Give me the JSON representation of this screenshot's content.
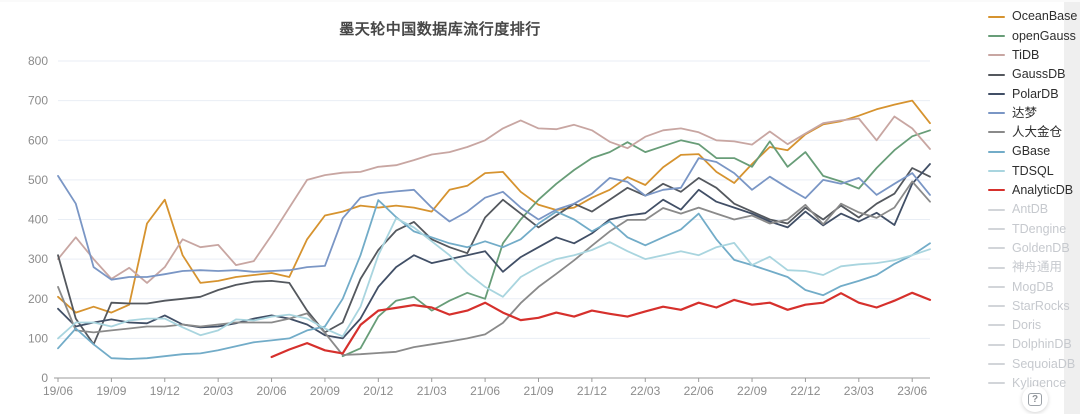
{
  "title": "墨天轮中国数据库流行度排行",
  "help_icon": "?",
  "legend": {
    "position": "right",
    "items": [
      {
        "label": "OceanBase",
        "color": "#D6932F",
        "active": true
      },
      {
        "label": "openGauss",
        "color": "#689D78",
        "active": true
      },
      {
        "label": "TiDB",
        "color": "#C8A6A2",
        "active": true
      },
      {
        "label": "GaussDB",
        "color": "#54585E",
        "active": true
      },
      {
        "label": "PolarDB",
        "color": "#414F66",
        "active": true
      },
      {
        "label": "达梦",
        "color": "#7A96C5",
        "active": true
      },
      {
        "label": "人大金仓",
        "color": "#8A8A8A",
        "active": true
      },
      {
        "label": "GBase",
        "color": "#72ACC8",
        "active": true
      },
      {
        "label": "TDSQL",
        "color": "#A9D5DF",
        "active": true
      },
      {
        "label": "AnalyticDB",
        "color": "#D6302C",
        "active": true
      },
      {
        "label": "AntDB",
        "color": "#D2D5D9",
        "active": false
      },
      {
        "label": "TDengine",
        "color": "#D2D5D9",
        "active": false
      },
      {
        "label": "GoldenDB",
        "color": "#D2D5D9",
        "active": false
      },
      {
        "label": "神舟通用",
        "color": "#D2D5D9",
        "active": false
      },
      {
        "label": "MogDB",
        "color": "#D2D5D9",
        "active": false
      },
      {
        "label": "StarRocks",
        "color": "#D2D5D9",
        "active": false
      },
      {
        "label": "Doris",
        "color": "#D2D5D9",
        "active": false
      },
      {
        "label": "DolphinDB",
        "color": "#D2D5D9",
        "active": false
      },
      {
        "label": "SequoiaDB",
        "color": "#D2D5D9",
        "active": false
      },
      {
        "label": "Kyligence",
        "color": "#D2D5D9",
        "active": false
      }
    ]
  },
  "chart_data": {
    "type": "line",
    "title": "墨天轮中国数据库流行度排行",
    "xlabel": "",
    "ylabel": "",
    "ylim": [
      0,
      800
    ],
    "y_ticks": [
      0,
      100,
      200,
      300,
      400,
      500,
      600,
      700,
      800
    ],
    "grid": true,
    "legend_position": "right",
    "points_count": 50,
    "x_start": "2019/06",
    "x_step_months": 1,
    "x_tick_every": 3,
    "x_tick_labels": [
      "19/06",
      "19/09",
      "19/12",
      "20/03",
      "20/06",
      "20/09",
      "20/12",
      "21/03",
      "21/06",
      "21/09",
      "21/12",
      "22/03",
      "22/06",
      "22/09",
      "22/12",
      "23/03",
      "23/06"
    ],
    "series": [
      {
        "name": "OceanBase",
        "color": "#D6932F",
        "values": [
          205,
          165,
          180,
          165,
          185,
          390,
          450,
          310,
          240,
          245,
          255,
          260,
          265,
          255,
          350,
          410,
          420,
          435,
          430,
          435,
          430,
          420,
          475,
          485,
          517,
          520,
          470,
          437,
          424,
          430,
          455,
          475,
          507,
          487,
          532,
          563,
          565,
          520,
          492,
          540,
          583,
          575,
          615,
          640,
          648,
          662,
          678,
          690,
          700,
          643
        ]
      },
      {
        "name": "openGauss",
        "color": "#689D78",
        "values": [
          null,
          null,
          null,
          null,
          null,
          null,
          null,
          null,
          null,
          null,
          null,
          null,
          null,
          null,
          null,
          null,
          55,
          75,
          155,
          195,
          205,
          170,
          195,
          215,
          200,
          340,
          400,
          450,
          490,
          525,
          555,
          570,
          595,
          570,
          585,
          600,
          590,
          555,
          555,
          533,
          597,
          533,
          570,
          510,
          496,
          478,
          530,
          575,
          610,
          625
        ]
      },
      {
        "name": "TiDB",
        "color": "#C8A6A2",
        "values": [
          300,
          355,
          300,
          250,
          278,
          240,
          280,
          350,
          330,
          336,
          285,
          295,
          360,
          430,
          500,
          512,
          518,
          520,
          533,
          537,
          550,
          564,
          570,
          583,
          600,
          630,
          650,
          630,
          628,
          639,
          625,
          596,
          580,
          609,
          625,
          630,
          620,
          600,
          597,
          589,
          622,
          590,
          617,
          643,
          650,
          655,
          600,
          660,
          630,
          578
        ]
      },
      {
        "name": "GaussDB",
        "color": "#54585E",
        "values": [
          310,
          150,
          85,
          190,
          188,
          188,
          195,
          200,
          205,
          222,
          235,
          243,
          245,
          240,
          170,
          115,
          140,
          250,
          323,
          372,
          394,
          350,
          330,
          315,
          405,
          450,
          415,
          380,
          410,
          440,
          420,
          450,
          480,
          460,
          490,
          470,
          505,
          480,
          440,
          420,
          400,
          390,
          430,
          400,
          435,
          405,
          440,
          465,
          530,
          508
        ]
      },
      {
        "name": "PolarDB",
        "color": "#414F66",
        "values": [
          175,
          130,
          140,
          148,
          140,
          138,
          158,
          135,
          128,
          130,
          138,
          150,
          158,
          150,
          135,
          108,
          100,
          150,
          230,
          280,
          310,
          290,
          300,
          310,
          320,
          268,
          305,
          330,
          355,
          340,
          365,
          400,
          410,
          416,
          450,
          425,
          475,
          445,
          430,
          415,
          395,
          380,
          420,
          385,
          415,
          395,
          417,
          386,
          490,
          540
        ]
      },
      {
        "name": "达梦",
        "color": "#7A96C5",
        "values": [
          510,
          440,
          280,
          248,
          255,
          255,
          262,
          270,
          272,
          270,
          272,
          268,
          270,
          272,
          280,
          283,
          403,
          455,
          466,
          471,
          475,
          430,
          395,
          420,
          455,
          470,
          430,
          400,
          425,
          440,
          465,
          505,
          495,
          460,
          475,
          480,
          555,
          545,
          517,
          475,
          508,
          480,
          454,
          500,
          490,
          505,
          462,
          490,
          517,
          462
        ]
      },
      {
        "name": "人大金仓",
        "color": "#8A8A8A",
        "values": [
          230,
          120,
          115,
          120,
          125,
          130,
          130,
          135,
          130,
          135,
          140,
          140,
          140,
          150,
          163,
          114,
          58,
          60,
          63,
          66,
          78,
          85,
          92,
          100,
          110,
          139,
          189,
          230,
          263,
          297,
          334,
          370,
          399,
          399,
          429,
          415,
          430,
          415,
          400,
          410,
          390,
          400,
          437,
          388,
          440,
          418,
          404,
          430,
          496,
          445
        ]
      },
      {
        "name": "GBase",
        "color": "#72ACC8",
        "values": [
          75,
          125,
          85,
          50,
          48,
          50,
          55,
          60,
          62,
          70,
          80,
          90,
          95,
          100,
          120,
          130,
          200,
          310,
          449,
          406,
          370,
          355,
          340,
          330,
          345,
          330,
          350,
          390,
          420,
          400,
          370,
          395,
          355,
          335,
          355,
          375,
          415,
          350,
          298,
          285,
          270,
          255,
          222,
          209,
          232,
          245,
          260,
          288,
          310,
          340
        ]
      },
      {
        "name": "TDSQL",
        "color": "#A9D5DF",
        "values": [
          100,
          140,
          140,
          130,
          145,
          150,
          150,
          128,
          108,
          120,
          148,
          145,
          155,
          160,
          150,
          125,
          105,
          180,
          310,
          403,
          380,
          345,
          310,
          265,
          230,
          205,
          255,
          280,
          300,
          310,
          323,
          343,
          320,
          300,
          310,
          320,
          310,
          330,
          341,
          285,
          306,
          272,
          270,
          260,
          282,
          287,
          290,
          297,
          310,
          325
        ]
      },
      {
        "name": "AnalyticDB",
        "color": "#D6302C",
        "values": [
          null,
          null,
          null,
          null,
          null,
          null,
          null,
          null,
          null,
          null,
          null,
          null,
          53,
          72,
          88,
          70,
          62,
          134,
          170,
          177,
          184,
          178,
          160,
          170,
          190,
          165,
          146,
          152,
          165,
          155,
          170,
          162,
          155,
          168,
          180,
          172,
          190,
          178,
          197,
          185,
          190,
          172,
          185,
          190,
          214,
          190,
          178,
          195,
          215,
          197
        ]
      }
    ]
  }
}
